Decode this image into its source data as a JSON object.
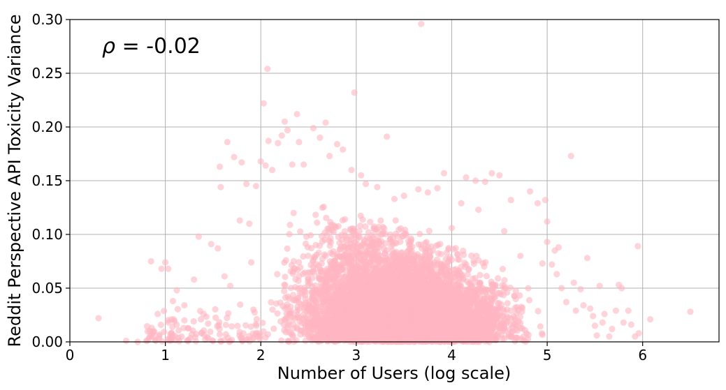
{
  "chart_data": {
    "type": "scatter",
    "title": "",
    "xlabel": "Number of Users (log scale)",
    "ylabel": "Reddit Perspective API Toxicity Variance",
    "xlim": [
      0,
      6.8
    ],
    "ylim": [
      0,
      0.3
    ],
    "xticks": [
      "0",
      "1",
      "2",
      "3",
      "4",
      "5",
      "6"
    ],
    "yticks": [
      "0.00",
      "0.05",
      "0.10",
      "0.15",
      "0.20",
      "0.25",
      "0.30"
    ],
    "grid": true,
    "annotation": {
      "symbol": "ρ",
      "text": " = -0.02",
      "position": "top-left"
    },
    "point_color": "#ffb6c1",
    "point_alpha": 0.6,
    "density_core": {
      "x_range": [
        2.0,
        4.9
      ],
      "y_peak_range": [
        0.0,
        0.09
      ],
      "approx_points": 6000
    },
    "points": [
      [
        0.3,
        0.022
      ],
      [
        0.59,
        0.001
      ],
      [
        0.71,
        0.0
      ],
      [
        0.8,
        0.001
      ],
      [
        0.85,
        0.075
      ],
      [
        0.9,
        0.001
      ],
      [
        0.92,
        0.026
      ],
      [
        0.96,
        0.068
      ],
      [
        1.0,
        0.074
      ],
      [
        1.03,
        0.068
      ],
      [
        1.08,
        0.038
      ],
      [
        1.12,
        0.048
      ],
      [
        1.2,
        0.034
      ],
      [
        1.2,
        0.02
      ],
      [
        1.3,
        0.058
      ],
      [
        1.35,
        0.098
      ],
      [
        1.4,
        0.026
      ],
      [
        1.48,
        0.091
      ],
      [
        1.55,
        0.087
      ],
      [
        1.57,
        0.163
      ],
      [
        1.58,
        0.144
      ],
      [
        1.62,
        0.061
      ],
      [
        1.65,
        0.186
      ],
      [
        1.68,
        0.052
      ],
      [
        1.72,
        0.172
      ],
      [
        1.78,
        0.113
      ],
      [
        1.8,
        0.167
      ],
      [
        1.85,
        0.147
      ],
      [
        1.88,
        0.11
      ],
      [
        1.9,
        0.074
      ],
      [
        1.95,
        0.145
      ],
      [
        2.0,
        0.168
      ],
      [
        2.03,
        0.222
      ],
      [
        2.05,
        0.164
      ],
      [
        2.07,
        0.254
      ],
      [
        2.08,
        0.187
      ],
      [
        2.12,
        0.16
      ],
      [
        2.18,
        0.185
      ],
      [
        2.22,
        0.192
      ],
      [
        2.25,
        0.205
      ],
      [
        2.28,
        0.197
      ],
      [
        2.33,
        0.165
      ],
      [
        2.38,
        0.212
      ],
      [
        2.4,
        0.186
      ],
      [
        2.45,
        0.165
      ],
      [
        2.55,
        0.199
      ],
      [
        2.62,
        0.19
      ],
      [
        2.68,
        0.204
      ],
      [
        2.72,
        0.173
      ],
      [
        2.8,
        0.184
      ],
      [
        2.86,
        0.179
      ],
      [
        2.95,
        0.16
      ],
      [
        2.98,
        0.232
      ],
      [
        3.05,
        0.155
      ],
      [
        3.1,
        0.147
      ],
      [
        3.22,
        0.144
      ],
      [
        3.32,
        0.191
      ],
      [
        3.4,
        0.133
      ],
      [
        3.5,
        0.136
      ],
      [
        3.68,
        0.296
      ],
      [
        3.65,
        0.142
      ],
      [
        3.75,
        0.139
      ],
      [
        3.85,
        0.143
      ],
      [
        3.92,
        0.157
      ],
      [
        4.0,
        0.106
      ],
      [
        4.1,
        0.129
      ],
      [
        4.15,
        0.153
      ],
      [
        4.25,
        0.15
      ],
      [
        4.28,
        0.123
      ],
      [
        4.35,
        0.149
      ],
      [
        4.42,
        0.157
      ],
      [
        4.5,
        0.155
      ],
      [
        4.55,
        0.103
      ],
      [
        4.62,
        0.132
      ],
      [
        4.72,
        0.08
      ],
      [
        4.82,
        0.14
      ],
      [
        4.9,
        0.129
      ],
      [
        4.95,
        0.073
      ],
      [
        4.98,
        0.132
      ],
      [
        5.0,
        0.112
      ],
      [
        5.0,
        0.093
      ],
      [
        5.05,
        0.072
      ],
      [
        5.08,
        0.085
      ],
      [
        5.1,
        0.063
      ],
      [
        5.12,
        0.088
      ],
      [
        5.15,
        0.05
      ],
      [
        5.2,
        0.037
      ],
      [
        5.25,
        0.173
      ],
      [
        5.28,
        0.055
      ],
      [
        5.3,
        0.029
      ],
      [
        5.35,
        0.049
      ],
      [
        5.38,
        0.034
      ],
      [
        5.42,
        0.078
      ],
      [
        5.45,
        0.031
      ],
      [
        5.48,
        0.024
      ],
      [
        5.5,
        0.015
      ],
      [
        5.52,
        0.006
      ],
      [
        5.55,
        0.052
      ],
      [
        5.58,
        0.018
      ],
      [
        5.6,
        0.026
      ],
      [
        5.65,
        0.005
      ],
      [
        5.68,
        0.012
      ],
      [
        5.72,
        0.029
      ],
      [
        5.75,
        0.053
      ],
      [
        5.78,
        0.05
      ],
      [
        5.8,
        0.018
      ],
      [
        5.85,
        0.029
      ],
      [
        5.88,
        0.016
      ],
      [
        5.92,
        0.005
      ],
      [
        5.95,
        0.089
      ],
      [
        5.96,
        0.008
      ],
      [
        6.08,
        0.021
      ],
      [
        6.5,
        0.028
      ]
    ]
  }
}
